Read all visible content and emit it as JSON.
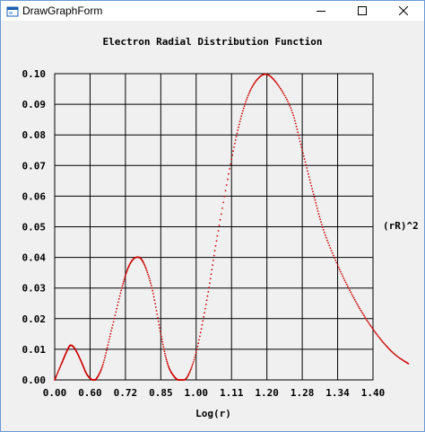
{
  "window": {
    "title": "DrawGraphForm",
    "icons": {
      "app": "form-icon",
      "minimize": "minimize-icon",
      "maximize": "maximize-icon",
      "close": "close-icon"
    }
  },
  "chart_data": {
    "type": "line",
    "title": "Electron Radial Distribution Function",
    "xlabel": "Log(r)",
    "ylabel": "(rR)^2",
    "x_tick_labels": [
      "0.00",
      "0.60",
      "0.72",
      "0.85",
      "1.00",
      "1.11",
      "1.20",
      "1.28",
      "1.34",
      "1.40"
    ],
    "y_tick_labels": [
      "0.00",
      "0.01",
      "0.02",
      "0.03",
      "0.04",
      "0.05",
      "0.06",
      "0.07",
      "0.08",
      "0.09",
      "0.10"
    ],
    "ylim": [
      0,
      0.1
    ],
    "grid": true,
    "series_color": "#cc0000",
    "points": [
      [
        0.0,
        0.0
      ],
      [
        0.2,
        0.0055
      ],
      [
        0.35,
        0.0095
      ],
      [
        0.45,
        0.0113
      ],
      [
        0.58,
        0.01
      ],
      [
        0.75,
        0.006
      ],
      [
        0.9,
        0.002
      ],
      [
        1.05,
        0.0001
      ],
      [
        1.15,
        0.0
      ],
      [
        1.35,
        0.0045
      ],
      [
        1.6,
        0.016
      ],
      [
        1.9,
        0.03
      ],
      [
        2.1,
        0.0372
      ],
      [
        2.3,
        0.04
      ],
      [
        2.5,
        0.0385
      ],
      [
        2.75,
        0.03
      ],
      [
        3.0,
        0.015
      ],
      [
        3.2,
        0.005
      ],
      [
        3.4,
        0.0008
      ],
      [
        3.55,
        0.0
      ],
      [
        3.75,
        0.001
      ],
      [
        4.0,
        0.009
      ],
      [
        4.3,
        0.026
      ],
      [
        4.6,
        0.047
      ],
      [
        5.0,
        0.072
      ],
      [
        5.3,
        0.087
      ],
      [
        5.6,
        0.096
      ],
      [
        5.95,
        0.0998
      ],
      [
        6.3,
        0.0965
      ],
      [
        6.7,
        0.088
      ],
      [
        7.0,
        0.075
      ],
      [
        7.3,
        0.0615
      ],
      [
        7.6,
        0.049
      ],
      [
        8.0,
        0.0375
      ],
      [
        8.4,
        0.028
      ],
      [
        8.8,
        0.02
      ],
      [
        9.2,
        0.0135
      ],
      [
        9.6,
        0.0085
      ],
      [
        10.0,
        0.0053
      ]
    ]
  }
}
